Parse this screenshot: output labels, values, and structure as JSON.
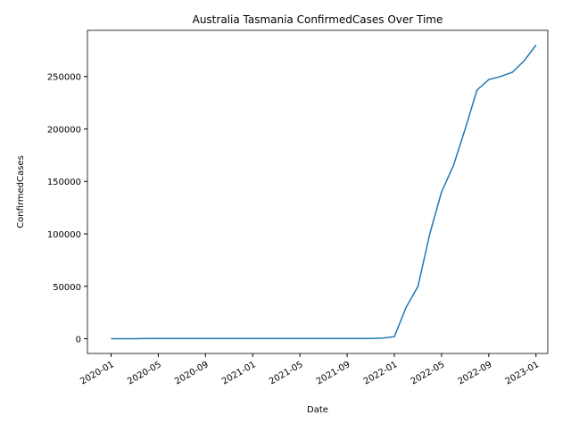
{
  "chart_data": {
    "type": "line",
    "title": "Australia Tasmania ConfirmedCases Over Time",
    "x_label": "Date",
    "y_label": "ConfirmedCases",
    "x": [
      "2020-01",
      "2020-02",
      "2020-03",
      "2020-04",
      "2020-05",
      "2020-06",
      "2020-07",
      "2020-08",
      "2020-09",
      "2020-10",
      "2020-11",
      "2020-12",
      "2021-01",
      "2021-02",
      "2021-03",
      "2021-04",
      "2021-05",
      "2021-06",
      "2021-07",
      "2021-08",
      "2021-09",
      "2021-10",
      "2021-11",
      "2021-12",
      "2022-01",
      "2022-02",
      "2022-03",
      "2022-04",
      "2022-05",
      "2022-06",
      "2022-07",
      "2022-08",
      "2022-09",
      "2022-10",
      "2022-11",
      "2022-12",
      "2023-01"
    ],
    "series": [
      {
        "name": "ConfirmedCases",
        "color": "#1f77b4",
        "values": [
          0,
          0,
          70,
          200,
          226,
          228,
          228,
          228,
          230,
          230,
          230,
          234,
          234,
          234,
          234,
          234,
          234,
          234,
          234,
          234,
          235,
          236,
          240,
          600,
          2000,
          30000,
          50000,
          100000,
          140000,
          165000,
          200000,
          237000,
          247000,
          250000,
          254000,
          265000,
          280000
        ]
      }
    ],
    "xlim": [
      "2019-11",
      "2023-02"
    ],
    "xticks": [
      "2020-01",
      "2020-05",
      "2020-09",
      "2021-01",
      "2021-05",
      "2021-09",
      "2022-01",
      "2022-05",
      "2022-09",
      "2023-01"
    ],
    "ylim": [
      -14000,
      294000
    ],
    "yticks": [
      0,
      50000,
      100000,
      150000,
      200000,
      250000
    ],
    "grid": false
  }
}
